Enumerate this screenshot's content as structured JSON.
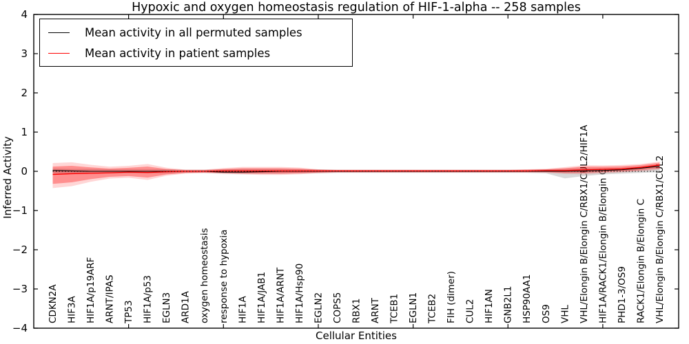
{
  "figure": {
    "title": "Hypoxic and oxygen homeostasis regulation of HIF-1-alpha -- 258 samples",
    "xlabel": "Cellular Entities",
    "ylabel": "Inferred Activity"
  },
  "legend": {
    "items": [
      {
        "label": "Mean activity in all permuted samples",
        "color": "#000000"
      },
      {
        "label": "Mean activity in patient samples",
        "color": "#ff0000"
      }
    ]
  },
  "chart_data": {
    "type": "line",
    "title": "Hypoxic and oxygen homeostasis regulation of HIF-1-alpha -- 258 samples",
    "xlabel": "Cellular Entities",
    "ylabel": "Inferred Activity",
    "ylim": [
      -4,
      4
    ],
    "yticks": [
      -4,
      -3,
      -2,
      -1,
      0,
      1,
      2,
      3,
      4
    ],
    "xticks_major": [
      5,
      10,
      15,
      20,
      25,
      30
    ],
    "grid": false,
    "legend_position": "upper left",
    "zero_line": 0,
    "categories": [
      "CDKN2A",
      "HIF3A",
      "HIF1A/p19ARF",
      "ARNT/IPAS",
      "TP53",
      "HIF1A/p53",
      "EGLN3",
      "ARD1A",
      "oxygen homeostasis",
      "response to hypoxia",
      "HIF1A",
      "HIF1A/JAB1",
      "HIF1A/ARNT",
      "HIF1A/Hsp90",
      "EGLN2",
      "COPS5",
      "RBX1",
      "ARNT",
      "TCEB1",
      "EGLN1",
      "TCEB2",
      "FIH (dimer)",
      "CUL2",
      "HIF1AN",
      "GNB2L1",
      "HSP90AA1",
      "OS9",
      "VHL",
      "VHL/Elongin B/Elongin C/RBX1/CUL2/HIF1A",
      "HIF1A/RACK1/Elongin B/Elongin C",
      "PHD1-3/OS9",
      "RACK1/Elongin B/Elongin C",
      "VHL/Elongin B/Elongin C/RBX1/CUL2"
    ],
    "series": [
      {
        "name": "Mean activity in all permuted samples",
        "color": "#000000",
        "style": "solid",
        "values": [
          0.02,
          0.01,
          0.0,
          0.0,
          0.0,
          0.0,
          0.0,
          0.0,
          0.0,
          -0.02,
          -0.02,
          -0.01,
          0.0,
          0.0,
          0.0,
          0.0,
          0.0,
          0.0,
          0.0,
          0.0,
          0.0,
          0.0,
          0.0,
          0.0,
          0.0,
          0.0,
          0.0,
          0.0,
          0.01,
          0.02,
          0.04,
          0.08,
          0.13
        ]
      },
      {
        "name": "Mean activity in patient samples",
        "color": "#ff0000",
        "style": "solid",
        "values": [
          -0.08,
          -0.06,
          -0.05,
          -0.04,
          -0.02,
          -0.03,
          -0.01,
          0.0,
          0.0,
          0.01,
          0.01,
          0.01,
          0.01,
          0.01,
          0.01,
          0.01,
          0.01,
          0.01,
          0.01,
          0.01,
          0.01,
          0.01,
          0.01,
          0.01,
          0.01,
          0.01,
          0.02,
          0.02,
          0.04,
          0.05,
          0.06,
          0.1,
          0.16
        ]
      }
    ],
    "bands": [
      {
        "name": "permuted samples range",
        "color": "#aaaaaa",
        "upper": [
          0.07,
          0.06,
          0.06,
          0.05,
          0.05,
          0.05,
          0.05,
          0.04,
          0.04,
          0.05,
          0.06,
          0.06,
          0.06,
          0.05,
          0.05,
          0.04,
          0.04,
          0.04,
          0.04,
          0.04,
          0.04,
          0.04,
          0.04,
          0.04,
          0.04,
          0.04,
          0.05,
          0.06,
          0.08,
          0.08,
          0.09,
          0.12,
          0.18
        ],
        "lower": [
          -0.06,
          -0.06,
          -0.06,
          -0.05,
          -0.05,
          -0.05,
          -0.05,
          -0.04,
          -0.04,
          -0.06,
          -0.07,
          -0.06,
          -0.06,
          -0.05,
          -0.05,
          -0.04,
          -0.04,
          -0.04,
          -0.04,
          -0.04,
          -0.04,
          -0.04,
          -0.04,
          -0.04,
          -0.04,
          -0.04,
          -0.05,
          -0.18,
          -0.12,
          -0.08,
          -0.06,
          -0.04,
          -0.02
        ]
      },
      {
        "name": "patient samples range",
        "color": "#ff0000",
        "upper": [
          0.12,
          0.14,
          0.1,
          0.07,
          0.09,
          0.12,
          0.06,
          0.03,
          0.03,
          0.06,
          0.08,
          0.08,
          0.08,
          0.07,
          0.04,
          0.03,
          0.03,
          0.03,
          0.03,
          0.03,
          0.03,
          0.03,
          0.03,
          0.03,
          0.03,
          0.04,
          0.05,
          0.08,
          0.12,
          0.12,
          0.13,
          0.16,
          0.22
        ],
        "lower": [
          -0.32,
          -0.28,
          -0.2,
          -0.14,
          -0.12,
          -0.16,
          -0.08,
          -0.04,
          -0.03,
          -0.04,
          -0.05,
          -0.06,
          -0.06,
          -0.05,
          -0.03,
          -0.02,
          -0.02,
          -0.02,
          -0.02,
          -0.02,
          -0.02,
          -0.02,
          -0.02,
          -0.02,
          -0.02,
          -0.02,
          -0.02,
          -0.04,
          -0.04,
          -0.02,
          0.0,
          0.03,
          0.08
        ]
      }
    ]
  }
}
